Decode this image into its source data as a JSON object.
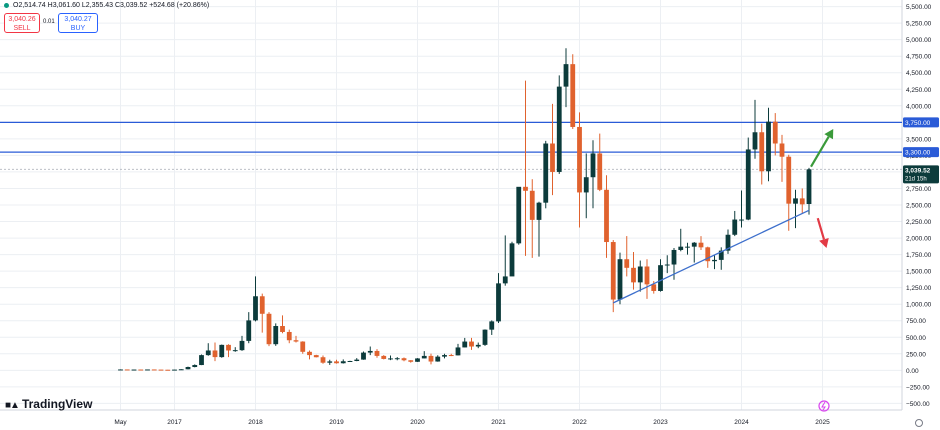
{
  "header": {
    "ohlc_text": "O2,514.74  H3,061.60  L2,355.43  C3,039.52  +524.68 (+20.86%)",
    "sell_price": "3,040.26",
    "sell_label": "SELL",
    "spread": "0.01",
    "buy_price": "3,040.27",
    "buy_label": "BUY"
  },
  "branding": {
    "name": "TradingView"
  },
  "colors": {
    "up": "#0c3b3b",
    "down": "#e0622e",
    "level_line": "#2a5bd7",
    "trend_line": "#3d6fcc",
    "arrow_up": "#3a9a3a",
    "arrow_down": "#e23a45",
    "grid": "#eceff3"
  },
  "chart_data": {
    "type": "candlestick",
    "interval": "monthly",
    "y_ticks": [
      "5,500.00",
      "5,250.00",
      "5,000.00",
      "4,750.00",
      "4,500.00",
      "4,250.00",
      "4,000.00",
      "3,750.00",
      "3,500.00",
      "3,250.00",
      "3,000.00",
      "2,750.00",
      "2,500.00",
      "2,250.00",
      "2,000.00",
      "1,750.00",
      "1,500.00",
      "1,250.00",
      "1,000.00",
      "750.00",
      "500.00",
      "250.00",
      "0.00",
      "−250.00",
      "−500.00"
    ],
    "y_tick_values": [
      5500,
      5250,
      5000,
      4750,
      4500,
      4250,
      4000,
      3750,
      3500,
      3250,
      3000,
      2750,
      2500,
      2250,
      2000,
      1750,
      1500,
      1250,
      1000,
      750,
      500,
      250,
      0,
      -250,
      -500
    ],
    "ylim": [
      -600,
      5600
    ],
    "x_ticks": [
      {
        "label": "May",
        "month": "2016-05"
      },
      {
        "label": "2017",
        "month": "2017-01"
      },
      {
        "label": "2018",
        "month": "2018-01"
      },
      {
        "label": "2019",
        "month": "2019-01"
      },
      {
        "label": "2020",
        "month": "2020-01"
      },
      {
        "label": "2021",
        "month": "2021-01"
      },
      {
        "label": "2022",
        "month": "2022-01"
      },
      {
        "label": "2023",
        "month": "2023-01"
      },
      {
        "label": "2024",
        "month": "2024-01"
      },
      {
        "label": "2025",
        "month": "2025-01"
      }
    ],
    "levels": [
      {
        "label": "3,750.00",
        "value": 3750
      },
      {
        "label": "3,300.00",
        "value": 3300
      }
    ],
    "last_price": {
      "value": 3039.52,
      "label": "3,039.52",
      "countdown": "21d 15h"
    },
    "trendline": {
      "start": {
        "month": "2022-06",
        "value": 1020
      },
      "end": {
        "month": "2024-11",
        "value": 2420
      }
    },
    "arrows": [
      {
        "direction": "up",
        "from": {
          "month": "2024-11",
          "value": 3080
        },
        "to": {
          "month": "2025-02",
          "value": 3650
        }
      },
      {
        "direction": "down",
        "from": {
          "month": "2024-12",
          "value": 2300
        },
        "to": {
          "month": "2025-01",
          "value": 1850
        }
      }
    ],
    "candles": [
      {
        "t": "2016-05",
        "o": 13,
        "h": 14,
        "l": 12,
        "c": 13
      },
      {
        "t": "2016-06",
        "o": 13,
        "h": 13,
        "l": 11,
        "c": 12
      },
      {
        "t": "2016-07",
        "o": 12,
        "h": 13,
        "l": 11,
        "c": 12
      },
      {
        "t": "2016-08",
        "o": 12,
        "h": 13,
        "l": 10,
        "c": 11
      },
      {
        "t": "2016-09",
        "o": 11,
        "h": 13,
        "l": 10,
        "c": 13
      },
      {
        "t": "2016-10",
        "o": 13,
        "h": 13,
        "l": 11,
        "c": 11
      },
      {
        "t": "2016-11",
        "o": 11,
        "h": 11,
        "l": 8,
        "c": 9
      },
      {
        "t": "2016-12",
        "o": 9,
        "h": 9,
        "l": 7,
        "c": 8
      },
      {
        "t": "2017-01",
        "o": 8,
        "h": 12,
        "l": 8,
        "c": 11
      },
      {
        "t": "2017-02",
        "o": 11,
        "h": 17,
        "l": 10,
        "c": 16
      },
      {
        "t": "2017-03",
        "o": 16,
        "h": 55,
        "l": 15,
        "c": 50
      },
      {
        "t": "2017-04",
        "o": 50,
        "h": 90,
        "l": 45,
        "c": 80
      },
      {
        "t": "2017-05",
        "o": 80,
        "h": 240,
        "l": 78,
        "c": 230
      },
      {
        "t": "2017-06",
        "o": 230,
        "h": 410,
        "l": 220,
        "c": 300
      },
      {
        "t": "2017-07",
        "o": 300,
        "h": 420,
        "l": 140,
        "c": 200
      },
      {
        "t": "2017-08",
        "o": 200,
        "h": 390,
        "l": 190,
        "c": 385
      },
      {
        "t": "2017-09",
        "o": 385,
        "h": 395,
        "l": 200,
        "c": 300
      },
      {
        "t": "2017-10",
        "o": 300,
        "h": 350,
        "l": 280,
        "c": 305
      },
      {
        "t": "2017-11",
        "o": 305,
        "h": 520,
        "l": 295,
        "c": 445
      },
      {
        "t": "2017-12",
        "o": 445,
        "h": 880,
        "l": 410,
        "c": 755
      },
      {
        "t": "2018-01",
        "o": 755,
        "h": 1420,
        "l": 740,
        "c": 1120
      },
      {
        "t": "2018-02",
        "o": 1120,
        "h": 1160,
        "l": 570,
        "c": 855
      },
      {
        "t": "2018-03",
        "o": 855,
        "h": 880,
        "l": 365,
        "c": 395
      },
      {
        "t": "2018-04",
        "o": 395,
        "h": 710,
        "l": 370,
        "c": 670
      },
      {
        "t": "2018-05",
        "o": 670,
        "h": 830,
        "l": 560,
        "c": 580
      },
      {
        "t": "2018-06",
        "o": 580,
        "h": 615,
        "l": 410,
        "c": 455
      },
      {
        "t": "2018-07",
        "o": 455,
        "h": 520,
        "l": 420,
        "c": 435
      },
      {
        "t": "2018-08",
        "o": 435,
        "h": 440,
        "l": 250,
        "c": 280
      },
      {
        "t": "2018-09",
        "o": 280,
        "h": 300,
        "l": 165,
        "c": 230
      },
      {
        "t": "2018-10",
        "o": 230,
        "h": 235,
        "l": 195,
        "c": 198
      },
      {
        "t": "2018-11",
        "o": 198,
        "h": 225,
        "l": 100,
        "c": 115
      },
      {
        "t": "2018-12",
        "o": 115,
        "h": 160,
        "l": 82,
        "c": 135
      },
      {
        "t": "2019-01",
        "o": 135,
        "h": 160,
        "l": 102,
        "c": 107
      },
      {
        "t": "2019-02",
        "o": 107,
        "h": 165,
        "l": 102,
        "c": 137
      },
      {
        "t": "2019-03",
        "o": 137,
        "h": 145,
        "l": 130,
        "c": 141
      },
      {
        "t": "2019-04",
        "o": 141,
        "h": 185,
        "l": 138,
        "c": 162
      },
      {
        "t": "2019-05",
        "o": 162,
        "h": 285,
        "l": 160,
        "c": 268
      },
      {
        "t": "2019-06",
        "o": 268,
        "h": 360,
        "l": 230,
        "c": 293
      },
      {
        "t": "2019-07",
        "o": 293,
        "h": 320,
        "l": 190,
        "c": 218
      },
      {
        "t": "2019-08",
        "o": 218,
        "h": 230,
        "l": 165,
        "c": 172
      },
      {
        "t": "2019-09",
        "o": 172,
        "h": 224,
        "l": 155,
        "c": 180
      },
      {
        "t": "2019-10",
        "o": 180,
        "h": 200,
        "l": 152,
        "c": 183
      },
      {
        "t": "2019-11",
        "o": 183,
        "h": 193,
        "l": 137,
        "c": 152
      },
      {
        "t": "2019-12",
        "o": 152,
        "h": 154,
        "l": 116,
        "c": 129
      },
      {
        "t": "2020-01",
        "o": 129,
        "h": 185,
        "l": 127,
        "c": 180
      },
      {
        "t": "2020-02",
        "o": 180,
        "h": 290,
        "l": 180,
        "c": 218
      },
      {
        "t": "2020-03",
        "o": 218,
        "h": 253,
        "l": 90,
        "c": 133
      },
      {
        "t": "2020-04",
        "o": 133,
        "h": 228,
        "l": 130,
        "c": 207
      },
      {
        "t": "2020-05",
        "o": 207,
        "h": 250,
        "l": 180,
        "c": 231
      },
      {
        "t": "2020-06",
        "o": 231,
        "h": 250,
        "l": 215,
        "c": 226
      },
      {
        "t": "2020-07",
        "o": 226,
        "h": 400,
        "l": 225,
        "c": 346
      },
      {
        "t": "2020-08",
        "o": 346,
        "h": 490,
        "l": 345,
        "c": 435
      },
      {
        "t": "2020-09",
        "o": 435,
        "h": 490,
        "l": 310,
        "c": 360
      },
      {
        "t": "2020-10",
        "o": 360,
        "h": 420,
        "l": 335,
        "c": 385
      },
      {
        "t": "2020-11",
        "o": 385,
        "h": 620,
        "l": 370,
        "c": 615
      },
      {
        "t": "2020-12",
        "o": 615,
        "h": 755,
        "l": 535,
        "c": 740
      },
      {
        "t": "2021-01",
        "o": 740,
        "h": 1470,
        "l": 715,
        "c": 1315
      },
      {
        "t": "2021-02",
        "o": 1315,
        "h": 2040,
        "l": 1280,
        "c": 1420
      },
      {
        "t": "2021-03",
        "o": 1420,
        "h": 1945,
        "l": 1430,
        "c": 1920
      },
      {
        "t": "2021-04",
        "o": 1920,
        "h": 2750,
        "l": 1900,
        "c": 2775
      },
      {
        "t": "2021-05",
        "o": 2775,
        "h": 4380,
        "l": 1730,
        "c": 2715
      },
      {
        "t": "2021-06",
        "o": 2715,
        "h": 2890,
        "l": 1700,
        "c": 2275
      },
      {
        "t": "2021-07",
        "o": 2275,
        "h": 2550,
        "l": 1720,
        "c": 2535
      },
      {
        "t": "2021-08",
        "o": 2535,
        "h": 3470,
        "l": 2450,
        "c": 3430
      },
      {
        "t": "2021-09",
        "o": 3430,
        "h": 4030,
        "l": 2650,
        "c": 3000
      },
      {
        "t": "2021-10",
        "o": 3000,
        "h": 4460,
        "l": 2970,
        "c": 4290
      },
      {
        "t": "2021-11",
        "o": 4290,
        "h": 4870,
        "l": 3980,
        "c": 4630
      },
      {
        "t": "2021-12",
        "o": 4630,
        "h": 4780,
        "l": 3650,
        "c": 3680
      },
      {
        "t": "2022-01",
        "o": 3680,
        "h": 3900,
        "l": 2160,
        "c": 2690
      },
      {
        "t": "2022-02",
        "o": 2690,
        "h": 3280,
        "l": 2300,
        "c": 2920
      },
      {
        "t": "2022-03",
        "o": 2920,
        "h": 3480,
        "l": 2450,
        "c": 3280
      },
      {
        "t": "2022-04",
        "o": 3280,
        "h": 3580,
        "l": 2710,
        "c": 2730
      },
      {
        "t": "2022-05",
        "o": 2730,
        "h": 2950,
        "l": 1700,
        "c": 1940
      },
      {
        "t": "2022-06",
        "o": 1940,
        "h": 1970,
        "l": 880,
        "c": 1070
      },
      {
        "t": "2022-07",
        "o": 1070,
        "h": 1780,
        "l": 1000,
        "c": 1680
      },
      {
        "t": "2022-08",
        "o": 1680,
        "h": 2030,
        "l": 1420,
        "c": 1550
      },
      {
        "t": "2022-09",
        "o": 1550,
        "h": 1790,
        "l": 1220,
        "c": 1330
      },
      {
        "t": "2022-10",
        "o": 1330,
        "h": 1660,
        "l": 1190,
        "c": 1570
      },
      {
        "t": "2022-11",
        "o": 1570,
        "h": 1680,
        "l": 1080,
        "c": 1300
      },
      {
        "t": "2022-12",
        "o": 1300,
        "h": 1350,
        "l": 1160,
        "c": 1200
      },
      {
        "t": "2023-01",
        "o": 1200,
        "h": 1680,
        "l": 1190,
        "c": 1590
      },
      {
        "t": "2023-02",
        "o": 1590,
        "h": 1740,
        "l": 1470,
        "c": 1600
      },
      {
        "t": "2023-03",
        "o": 1600,
        "h": 1850,
        "l": 1370,
        "c": 1820
      },
      {
        "t": "2023-04",
        "o": 1820,
        "h": 2140,
        "l": 1800,
        "c": 1870
      },
      {
        "t": "2023-05",
        "o": 1870,
        "h": 1930,
        "l": 1750,
        "c": 1870
      },
      {
        "t": "2023-06",
        "o": 1870,
        "h": 1940,
        "l": 1630,
        "c": 1930
      },
      {
        "t": "2023-07",
        "o": 1930,
        "h": 2030,
        "l": 1820,
        "c": 1860
      },
      {
        "t": "2023-08",
        "o": 1860,
        "h": 1870,
        "l": 1550,
        "c": 1650
      },
      {
        "t": "2023-09",
        "o": 1650,
        "h": 1750,
        "l": 1530,
        "c": 1670
      },
      {
        "t": "2023-10",
        "o": 1670,
        "h": 1860,
        "l": 1520,
        "c": 1810
      },
      {
        "t": "2023-11",
        "o": 1810,
        "h": 2130,
        "l": 1760,
        "c": 2050
      },
      {
        "t": "2023-12",
        "o": 2050,
        "h": 2410,
        "l": 2030,
        "c": 2280
      },
      {
        "t": "2024-01",
        "o": 2280,
        "h": 2720,
        "l": 2160,
        "c": 2280
      },
      {
        "t": "2024-02",
        "o": 2280,
        "h": 3520,
        "l": 2270,
        "c": 3340
      },
      {
        "t": "2024-03",
        "o": 3340,
        "h": 4090,
        "l": 3200,
        "c": 3600
      },
      {
        "t": "2024-04",
        "o": 3600,
        "h": 3730,
        "l": 2810,
        "c": 3010
      },
      {
        "t": "2024-05",
        "o": 3010,
        "h": 3970,
        "l": 2860,
        "c": 3760
      },
      {
        "t": "2024-06",
        "o": 3760,
        "h": 3890,
        "l": 3250,
        "c": 3430
      },
      {
        "t": "2024-07",
        "o": 3430,
        "h": 3560,
        "l": 2850,
        "c": 3230
      },
      {
        "t": "2024-08",
        "o": 3230,
        "h": 3260,
        "l": 2110,
        "c": 2520
      },
      {
        "t": "2024-09",
        "o": 2520,
        "h": 2730,
        "l": 2150,
        "c": 2600
      },
      {
        "t": "2024-10",
        "o": 2600,
        "h": 2750,
        "l": 2380,
        "c": 2510
      },
      {
        "t": "2024-11",
        "o": 2515,
        "h": 3062,
        "l": 2355,
        "c": 3040
      }
    ]
  }
}
